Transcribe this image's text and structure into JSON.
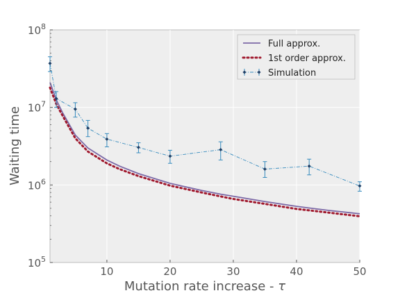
{
  "chart_data": {
    "type": "line",
    "xlabel": "Mutation rate increase - τ",
    "xlabel_main": "Mutation rate increase - ",
    "xlabel_symbol": "τ",
    "ylabel": "Waiting time",
    "y_scale": "log",
    "xlim": [
      1,
      50
    ],
    "ylim": [
      100000,
      100000000
    ],
    "x_ticks": [
      10,
      20,
      30,
      40,
      50
    ],
    "x_tick_labels": [
      "10",
      "20",
      "30",
      "40",
      "50"
    ],
    "y_ticks": [
      100000,
      1000000,
      10000000,
      100000000
    ],
    "y_tick_labels": [
      {
        "base": "10",
        "exp": "5"
      },
      {
        "base": "10",
        "exp": "6"
      },
      {
        "base": "10",
        "exp": "7"
      },
      {
        "base": "10",
        "exp": "8"
      }
    ],
    "grid": true,
    "legend_position": "top-right",
    "series": [
      {
        "name": "Full approx.",
        "style": "solid",
        "color": "#7b68a6",
        "x": [
          1,
          2,
          3,
          5,
          7,
          10,
          12,
          15,
          20,
          25,
          28,
          30,
          35,
          40,
          42,
          45,
          50
        ],
        "y": [
          21000000,
          12500000,
          8500000,
          4400000,
          3000000,
          2100000,
          1750000,
          1400000,
          1050000,
          850000,
          760000,
          715000,
          610000,
          530000,
          505000,
          470000,
          425000
        ]
      },
      {
        "name": "1st order approx.",
        "style": "dotted",
        "color": "#a0192e",
        "x": [
          1,
          2,
          3,
          5,
          7,
          10,
          12,
          15,
          20,
          25,
          28,
          30,
          35,
          40,
          42,
          45,
          50
        ],
        "y": [
          18000000,
          11000000,
          7800000,
          4000000,
          2700000,
          1900000,
          1600000,
          1300000,
          980000,
          800000,
          710000,
          660000,
          570000,
          490000,
          470000,
          440000,
          395000
        ]
      },
      {
        "name": "Simulation",
        "style": "dashdot",
        "color": "#348abd",
        "marker_color": "#1f3f66",
        "x": [
          1,
          2,
          5,
          7,
          10,
          15,
          20,
          28,
          35,
          42,
          50
        ],
        "y": [
          37000000,
          13000000,
          9500000,
          5400000,
          3900000,
          3050000,
          2350000,
          2850000,
          1600000,
          1750000,
          970000
        ],
        "err_low": [
          29000000,
          10000000,
          7500000,
          4200000,
          3100000,
          2600000,
          1900000,
          2100000,
          1250000,
          1350000,
          830000
        ],
        "err_high": [
          45000000,
          16000000,
          11500000,
          6800000,
          4600000,
          3500000,
          2800000,
          3600000,
          2000000,
          2150000,
          1100000
        ]
      }
    ]
  }
}
